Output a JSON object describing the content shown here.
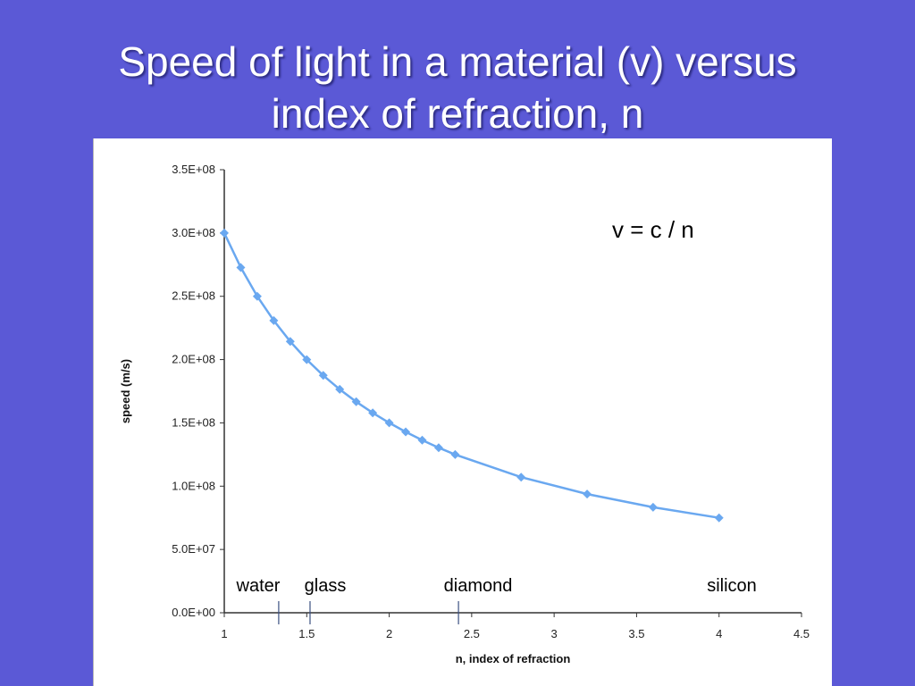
{
  "slide": {
    "title_line1": "Speed of light in a material (v) versus",
    "title_line2": "index of refraction, n"
  },
  "chart_data": {
    "type": "line",
    "xlabel": "n, index of refraction",
    "ylabel": "speed (m/s)",
    "xlim": [
      1,
      4.5
    ],
    "ylim": [
      0,
      350000000
    ],
    "x_ticks": [
      "1",
      "1.5",
      "2",
      "2.5",
      "3",
      "3.5",
      "4",
      "4.5"
    ],
    "y_ticks": [
      "0.0E+00",
      "5.0E+07",
      "1.0E+08",
      "1.5E+08",
      "2.0E+08",
      "2.5E+08",
      "3.0E+08",
      "3.5E+08"
    ],
    "x": [
      1.0,
      1.1,
      1.2,
      1.3,
      1.4,
      1.5,
      1.6,
      1.7,
      1.8,
      1.9,
      2.0,
      2.1,
      2.2,
      2.3,
      2.4,
      2.8,
      3.2,
      3.6,
      4.0
    ],
    "y": [
      300000000,
      272700000,
      250000000,
      230800000,
      214300000,
      200000000,
      187500000,
      176500000,
      166700000,
      157900000,
      150000000,
      142900000,
      136400000,
      130400000,
      125000000,
      107100000,
      93750000,
      83330000,
      75000000
    ],
    "grid": false,
    "series_color": "#6aa8f0",
    "formula": "v = c / n",
    "annotations": [
      {
        "label": "water",
        "n": 1.33
      },
      {
        "label": "glass",
        "n": 1.52
      },
      {
        "label": "diamond",
        "n": 2.42
      },
      {
        "label": "silicon",
        "n": 4.0
      }
    ]
  }
}
